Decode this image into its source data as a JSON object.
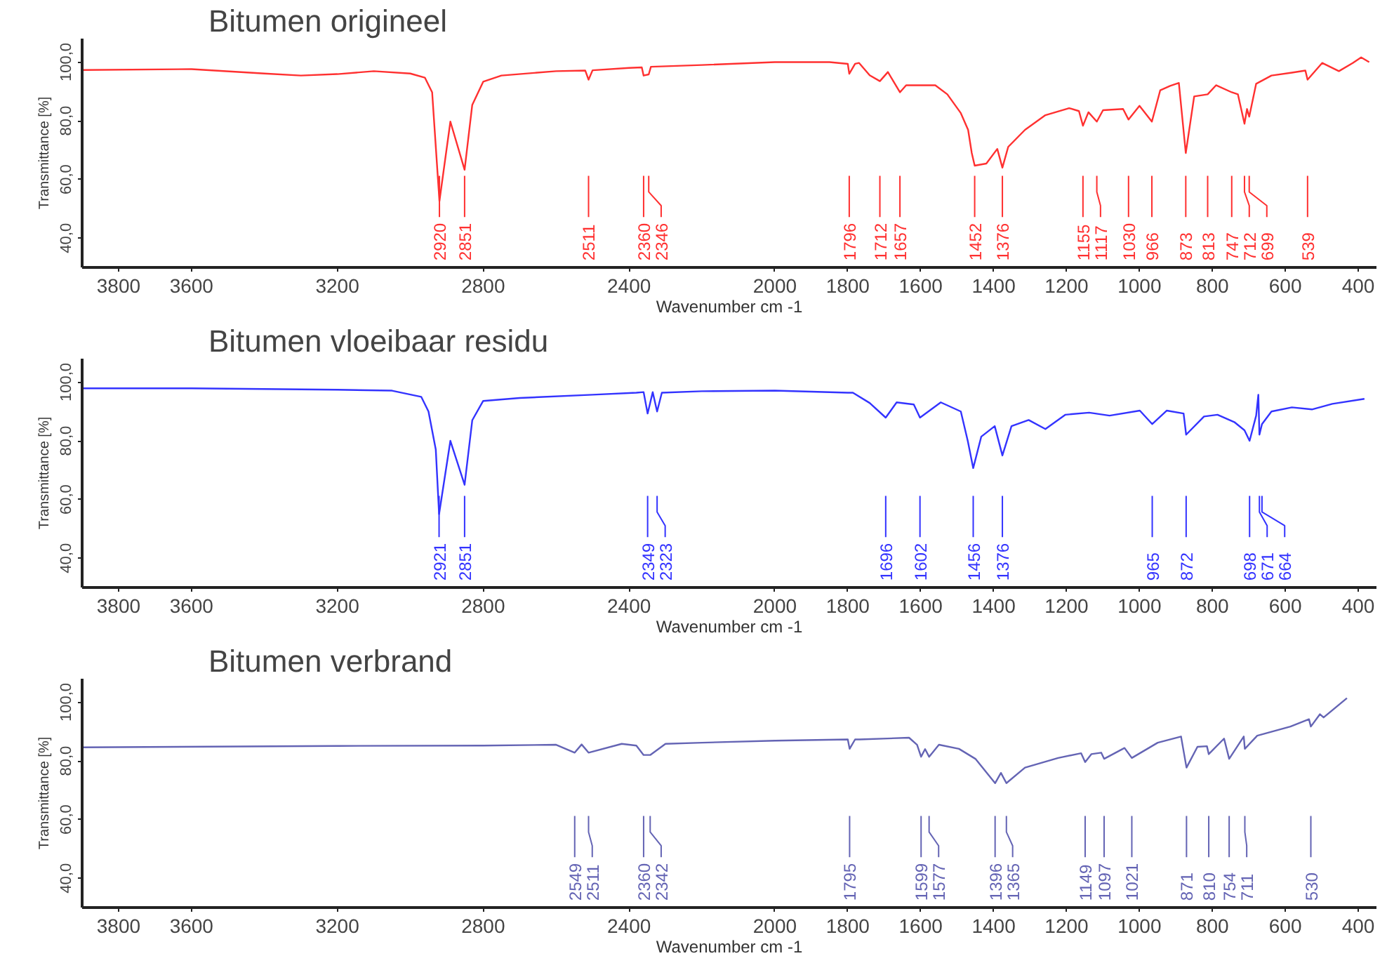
{
  "chart_data": [
    {
      "type": "line",
      "title": "Bitumen origineel",
      "xlabel": "Wavenumber cm -1",
      "ylabel": "Transmittance [%]",
      "xlim": [
        3900,
        350
      ],
      "ylim": [
        30,
        108
      ],
      "xticks": [
        3800,
        3600,
        3200,
        2800,
        2400,
        2000,
        1800,
        1600,
        1400,
        1200,
        1000,
        800,
        600,
        400
      ],
      "yticks": [
        {
          "value": 40,
          "label": "40,0"
        },
        {
          "value": 60,
          "label": "60,0"
        },
        {
          "value": 80,
          "label": "80,0"
        },
        {
          "value": 100,
          "label": "100,0"
        }
      ],
      "series": [
        {
          "color": "#ff3030",
          "x": [
            3900,
            3600,
            3400,
            3300,
            3200,
            3100,
            3000,
            2960,
            2940,
            2920,
            2890,
            2851,
            2830,
            2800,
            2750,
            2600,
            2520,
            2511,
            2500,
            2400,
            2365,
            2360,
            2346,
            2340,
            2200,
            2000,
            1850,
            1800,
            1796,
            1780,
            1769,
            1740,
            1712,
            1690,
            1657,
            1640,
            1560,
            1527,
            1490,
            1470,
            1460,
            1452,
            1420,
            1390,
            1376,
            1360,
            1314,
            1258,
            1193,
            1166,
            1155,
            1140,
            1117,
            1100,
            1045,
            1030,
            1000,
            966,
            943,
            916,
            892,
            873,
            850,
            813,
            790,
            747,
            730,
            712,
            705,
            699,
            680,
            638,
            582,
            545,
            539,
            499,
            453,
            415,
            392,
            370
          ],
          "values": [
            97.3,
            97.6,
            96.1,
            95.4,
            95.9,
            96.9,
            96.1,
            94.7,
            89.7,
            52.6,
            79.7,
            63.3,
            85.4,
            93.3,
            95.4,
            96.9,
            97.1,
            94,
            97.2,
            98,
            98.2,
            95.4,
            95.8,
            98.4,
            99,
            100,
            100,
            99.4,
            96,
            99.4,
            99.7,
            95.5,
            93.5,
            96.6,
            89.7,
            92.1,
            92.1,
            89,
            82.6,
            76.9,
            69,
            64.7,
            65.4,
            70.4,
            64,
            71.1,
            76.9,
            81.9,
            84.3,
            83.3,
            78.3,
            82.9,
            79.7,
            83.6,
            84,
            80.4,
            85.1,
            79.7,
            90.4,
            91.9,
            92.9,
            69,
            88.3,
            89,
            92.1,
            89.7,
            89,
            79,
            84,
            81.4,
            92.6,
            95.4,
            96.4,
            97.1,
            94,
            99.7,
            96.9,
            99.7,
            101.6,
            100
          ]
        }
      ],
      "annotations": [
        {
          "text": "2920",
          "x": 2920
        },
        {
          "text": "2851",
          "x": 2851
        },
        {
          "text": "2511",
          "x": 2511
        },
        {
          "text": "2360",
          "x": 2360
        },
        {
          "text": "2346",
          "x": 2346
        },
        {
          "text": "1796",
          "x": 1796
        },
        {
          "text": "1712",
          "x": 1712
        },
        {
          "text": "1657",
          "x": 1657
        },
        {
          "text": "1452",
          "x": 1452
        },
        {
          "text": "1376",
          "x": 1376
        },
        {
          "text": "1155",
          "x": 1155
        },
        {
          "text": "1117",
          "x": 1117
        },
        {
          "text": "1030",
          "x": 1030
        },
        {
          "text": "966",
          "x": 966
        },
        {
          "text": "873",
          "x": 873
        },
        {
          "text": "813",
          "x": 813
        },
        {
          "text": "747",
          "x": 747
        },
        {
          "text": "712",
          "x": 712
        },
        {
          "text": "699",
          "x": 699
        },
        {
          "text": "539",
          "x": 539
        }
      ]
    },
    {
      "type": "line",
      "title": "Bitumen vloeibaar residu",
      "xlabel": "Wavenumber cm -1",
      "ylabel": "Transmittance [%]",
      "xlim": [
        3900,
        350
      ],
      "ylim": [
        30,
        108
      ],
      "xticks": [
        3800,
        3600,
        3200,
        2800,
        2400,
        2000,
        1800,
        1600,
        1400,
        1200,
        1000,
        800,
        600,
        400
      ],
      "yticks": [
        {
          "value": 40,
          "label": "40,0"
        },
        {
          "value": 60,
          "label": "60,0"
        },
        {
          "value": 80,
          "label": "80,0"
        },
        {
          "value": 100,
          "label": "100,0"
        }
      ],
      "series": [
        {
          "color": "#3333ff",
          "x": [
            3900,
            3600,
            3200,
            3050,
            2970,
            2950,
            2930,
            2921,
            2890,
            2851,
            2830,
            2800,
            2700,
            2500,
            2380,
            2360,
            2349,
            2335,
            2323,
            2310,
            2200,
            2000,
            1800,
            1786,
            1740,
            1696,
            1666,
            1619,
            1602,
            1545,
            1490,
            1471,
            1456,
            1434,
            1397,
            1376,
            1351,
            1304,
            1258,
            1203,
            1138,
            1082,
            999,
            965,
            925,
            879,
            872,
            823,
            786,
            740,
            712,
            698,
            680,
            674,
            671,
            664,
            638,
            582,
            527,
            471,
            383
          ],
          "values": [
            97.9,
            97.9,
            97.4,
            97.1,
            95,
            90,
            77,
            55,
            80,
            65,
            87,
            93.6,
            94.6,
            95.7,
            96.4,
            96.6,
            89.3,
            96.6,
            90,
            96.4,
            96.9,
            97.1,
            96.4,
            96.4,
            92.9,
            87.9,
            93.1,
            92.4,
            87.9,
            93.1,
            90,
            80,
            70.7,
            81.4,
            85,
            75,
            85,
            87.1,
            84,
            88.9,
            89.6,
            88.6,
            90.3,
            85.7,
            90.3,
            89.3,
            82.1,
            88.3,
            88.9,
            86.4,
            83.6,
            80,
            88.6,
            95.7,
            82.1,
            85.7,
            90,
            91.4,
            90.7,
            92.6,
            94.3
          ]
        }
      ],
      "annotations": [
        {
          "text": "2921",
          "x": 2921
        },
        {
          "text": "2851",
          "x": 2851
        },
        {
          "text": "2349",
          "x": 2349
        },
        {
          "text": "2323",
          "x": 2323
        },
        {
          "text": "1696",
          "x": 1696
        },
        {
          "text": "1602",
          "x": 1602
        },
        {
          "text": "1456",
          "x": 1456
        },
        {
          "text": "1376",
          "x": 1376
        },
        {
          "text": "965",
          "x": 965
        },
        {
          "text": "872",
          "x": 872
        },
        {
          "text": "698",
          "x": 698
        },
        {
          "text": "671",
          "x": 671
        },
        {
          "text": "664",
          "x": 664
        }
      ]
    },
    {
      "type": "line",
      "title": "Bitumen verbrand",
      "xlabel": "Wavenumber cm -1",
      "ylabel": "Transmittance [%]",
      "xlim": [
        3900,
        350
      ],
      "ylim": [
        30,
        108
      ],
      "xticks": [
        3800,
        3600,
        3200,
        2800,
        2400,
        2000,
        1800,
        1600,
        1400,
        1200,
        1000,
        800,
        600,
        400
      ],
      "yticks": [
        {
          "value": 40,
          "label": "40,0"
        },
        {
          "value": 60,
          "label": "60,0"
        },
        {
          "value": 80,
          "label": "80,0"
        },
        {
          "value": 100,
          "label": "100,0"
        }
      ],
      "series": [
        {
          "color": "#6464b4",
          "x": [
            3900,
            3200,
            2800,
            2600,
            2549,
            2530,
            2511,
            2420,
            2380,
            2360,
            2342,
            2300,
            2200,
            2000,
            1800,
            1795,
            1780,
            1768,
            1632,
            1610,
            1599,
            1588,
            1577,
            1550,
            1495,
            1450,
            1396,
            1380,
            1365,
            1314,
            1223,
            1160,
            1149,
            1132,
            1105,
            1097,
            1041,
            1021,
            950,
            886,
            871,
            841,
            815,
            810,
            768,
            754,
            714,
            711,
            677,
            586,
            535,
            530,
            505,
            495,
            431
          ],
          "values": [
            84.6,
            85.1,
            85.2,
            85.5,
            82.8,
            85.6,
            82.8,
            85.8,
            85.2,
            82,
            82,
            85.8,
            86.2,
            86.9,
            87.3,
            84.1,
            87.3,
            87.3,
            87.9,
            85.5,
            81.4,
            84,
            81.4,
            85.5,
            84.1,
            80.7,
            72.4,
            75.9,
            72.4,
            77.7,
            81,
            82.6,
            79.6,
            82.3,
            82.8,
            80.7,
            84.4,
            81,
            86.2,
            88.3,
            77.7,
            84.8,
            85,
            82.3,
            87.6,
            80.7,
            88.3,
            84.1,
            88.6,
            91.7,
            94.2,
            91.7,
            95.9,
            94.8,
            101.4
          ]
        }
      ],
      "annotations": [
        {
          "text": "2549",
          "x": 2549
        },
        {
          "text": "2511",
          "x": 2511
        },
        {
          "text": "2360",
          "x": 2360
        },
        {
          "text": "2342",
          "x": 2342
        },
        {
          "text": "1795",
          "x": 1795
        },
        {
          "text": "1599",
          "x": 1599
        },
        {
          "text": "1577",
          "x": 1577
        },
        {
          "text": "1396",
          "x": 1396
        },
        {
          "text": "1365",
          "x": 1365
        },
        {
          "text": "1149",
          "x": 1149
        },
        {
          "text": "1097",
          "x": 1097
        },
        {
          "text": "1021",
          "x": 1021
        },
        {
          "text": "871",
          "x": 871
        },
        {
          "text": "810",
          "x": 810
        },
        {
          "text": "754",
          "x": 754
        },
        {
          "text": "711",
          "x": 711
        },
        {
          "text": "530",
          "x": 530
        }
      ]
    }
  ]
}
